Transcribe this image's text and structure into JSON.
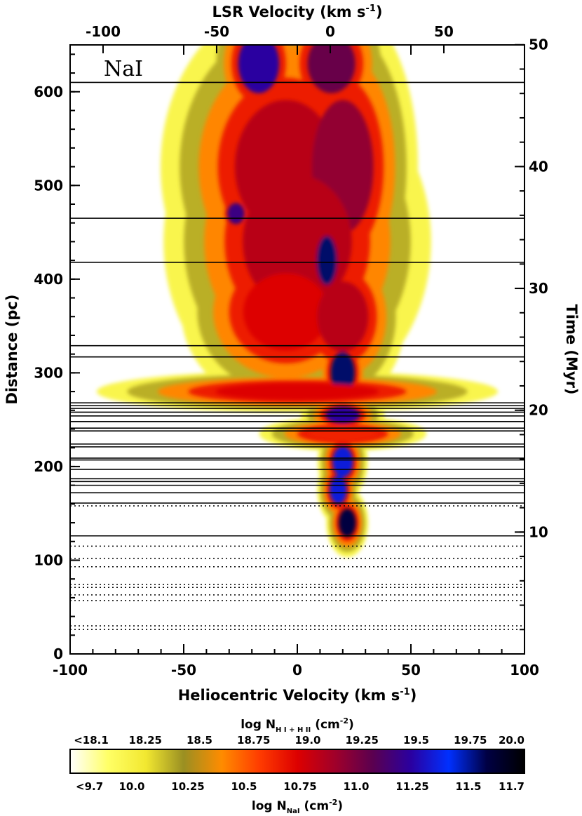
{
  "chart_data": {
    "type": "heatmap",
    "species_label": "NaI",
    "x_bottom": {
      "label": "Heliocentric Velocity (km s",
      "label_sup": "-1",
      "label_close": ")",
      "range": [
        -100,
        100
      ],
      "ticks": [
        "-100",
        "-50",
        "0",
        "50",
        "100"
      ],
      "tick_values": [
        -100,
        -50,
        0,
        50,
        100
      ]
    },
    "x_top": {
      "label": "LSR Velocity (km s",
      "label_sup": "-1",
      "label_close": ")",
      "ticks": [
        "-100",
        "-50",
        "0",
        "50"
      ],
      "tick_values": [
        -100,
        -50,
        0,
        50
      ],
      "lsr_offset": -14.5
    },
    "y_left": {
      "label": "Distance (pc)",
      "range": [
        0,
        650
      ],
      "ticks": [
        "0",
        "100",
        "200",
        "300",
        "400",
        "500",
        "600"
      ],
      "tick_values": [
        0,
        100,
        200,
        300,
        400,
        500,
        600
      ]
    },
    "y_right": {
      "label": "Time (Myr)",
      "ticks": [
        "10",
        "20",
        "30",
        "40",
        "50"
      ],
      "tick_values": [
        10,
        20,
        30,
        40,
        50
      ],
      "myr_per_pc": 0.0769
    },
    "colorbar": {
      "top_label": "log N",
      "top_label_sub": "H I + H II",
      "top_label_unit": "(cm",
      "top_label_sup": "-2",
      "top_label_close": ")",
      "top_ticks": [
        "<18.1",
        "18.25",
        "18.5",
        "18.75",
        "19.0",
        "19.25",
        "19.5",
        "19.75",
        "20.0"
      ],
      "bottom_label": "log N",
      "bottom_label_sub": "NaI",
      "bottom_label_unit": "(cm",
      "bottom_label_sup": "-2",
      "bottom_label_close": ")",
      "bottom_ticks": [
        "<9.7",
        "10.0",
        "10.25",
        "10.5",
        "10.75",
        "11.0",
        "11.25",
        "11.5",
        "11.7"
      ],
      "stops": [
        "#ffffff",
        "#ffff66",
        "#f2e830",
        "#9a8f22",
        "#ff8c00",
        "#ff3c00",
        "#dd0000",
        "#a0002a",
        "#5a0050",
        "#2a00a0",
        "#0030ff",
        "#000044",
        "#000000"
      ]
    },
    "sightlines_solid_pc": [
      610,
      465,
      418,
      329,
      317,
      268,
      265,
      262,
      258,
      254,
      248,
      241,
      238,
      224,
      221,
      209,
      207,
      197,
      187,
      184,
      180,
      172,
      161,
      126
    ],
    "sightlines_dotted_pc": [
      158,
      115,
      102,
      93,
      74,
      71,
      63,
      57,
      30,
      26
    ],
    "emission_blobs": [
      {
        "v": -17,
        "d": 630,
        "dv": 12,
        "dd": 42,
        "level": 0.75
      },
      {
        "v": 15,
        "d": 630,
        "dv": 14,
        "dd": 42,
        "level": 0.65
      },
      {
        "v": -5,
        "d": 520,
        "dv": 30,
        "dd": 95,
        "level": 0.55
      },
      {
        "v": 20,
        "d": 520,
        "dv": 18,
        "dd": 95,
        "level": 0.6
      },
      {
        "v": -27,
        "d": 470,
        "dv": 5,
        "dd": 15,
        "level": 0.72
      },
      {
        "v": 0,
        "d": 440,
        "dv": 32,
        "dd": 95,
        "level": 0.55
      },
      {
        "v": 13,
        "d": 420,
        "dv": 6,
        "dd": 35,
        "level": 0.9
      },
      {
        "v": -5,
        "d": 365,
        "dv": 25,
        "dd": 55,
        "level": 0.5
      },
      {
        "v": 20,
        "d": 360,
        "dv": 15,
        "dd": 50,
        "level": 0.55
      },
      {
        "v": 20,
        "d": 300,
        "dv": 7,
        "dd": 30,
        "level": 0.9
      },
      {
        "v": 0,
        "d": 280,
        "dv": 48,
        "dd": 12,
        "level": 0.5
      },
      {
        "v": 20,
        "d": 255,
        "dv": 10,
        "dd": 12,
        "level": 0.75
      },
      {
        "v": 20,
        "d": 235,
        "dv": 20,
        "dd": 10,
        "level": 0.45
      },
      {
        "v": 20,
        "d": 205,
        "dv": 6,
        "dd": 22,
        "level": 0.8
      },
      {
        "v": 18,
        "d": 175,
        "dv": 5,
        "dd": 20,
        "level": 0.8
      },
      {
        "v": 22,
        "d": 140,
        "dv": 5,
        "dd": 20,
        "level": 0.92
      }
    ]
  }
}
